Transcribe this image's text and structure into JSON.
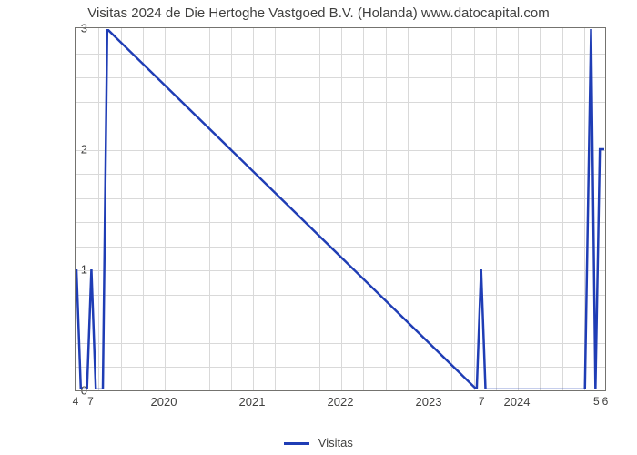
{
  "chart": {
    "type": "line",
    "title": "Visitas 2024 de Die Hertoghe Vastgoed B.V. (Holanda) www.datocapital.com",
    "title_fontsize": 15,
    "title_color": "#40403f",
    "background_color": "#ffffff",
    "plot_border_color": "#74736f",
    "grid_color": "#d9d9d9",
    "line_color": "#1f3db5",
    "line_width": 2.5,
    "axis_label_color": "#40403f",
    "axis_label_fontsize": 13,
    "ylim": [
      0,
      3
    ],
    "ytick_values": [
      0,
      1,
      2,
      3
    ],
    "ytick_labels": [
      "0",
      "1",
      "2",
      "3"
    ],
    "xlim": [
      2019,
      2025
    ],
    "xtick_values": [
      2020,
      2021,
      2022,
      2023,
      2024
    ],
    "xtick_labels": [
      "2020",
      "2021",
      "2022",
      "2023",
      "2024"
    ],
    "x_minor_grid_step": 0.25,
    "y_minor_grid_step": 0.2,
    "data": {
      "x": [
        2019.0,
        2019.05,
        2019.12,
        2019.17,
        2019.22,
        2019.3,
        2019.35,
        2023.55,
        2023.6,
        2023.65,
        2024.78,
        2024.85,
        2024.9,
        2024.95,
        2025.0
      ],
      "y": [
        1,
        0,
        0,
        1,
        0,
        0,
        3,
        0,
        1,
        0,
        0,
        3,
        0,
        2,
        2
      ]
    },
    "data_labels": [
      {
        "x": 2019.0,
        "text": "4"
      },
      {
        "x": 2019.17,
        "text": "7"
      },
      {
        "x": 2023.6,
        "text": "7"
      },
      {
        "x": 2024.9,
        "text": "5"
      },
      {
        "x": 2025.0,
        "text": "6"
      }
    ],
    "legend": {
      "label": "Visitas",
      "color": "#1f3db5"
    }
  }
}
